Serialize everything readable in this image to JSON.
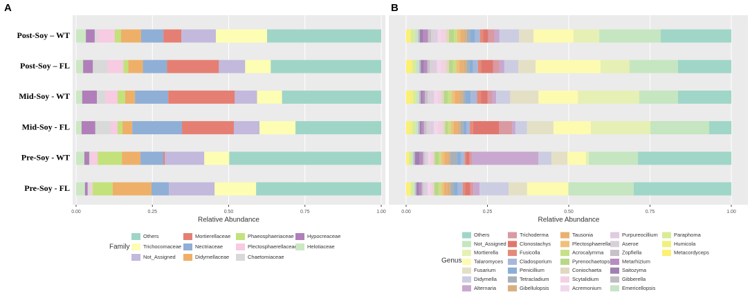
{
  "chart_data": [
    {
      "type": "bar",
      "orientation": "horizontal",
      "stacked": true,
      "grid": true,
      "panel_label": "A",
      "categories": [
        "Post-Soy – WT",
        "Post-Soy – FL",
        "Mid-Soy - WT",
        "Mid-Soy - FL",
        "Pre-Soy - WT",
        "Pre-Soy - FL"
      ],
      "xlabel": "Relative Abundance",
      "xlim": [
        0,
        1
      ],
      "xticks": [
        {
          "value": 0,
          "label": "0.00"
        },
        {
          "value": 0.25,
          "label": "0.25"
        },
        {
          "value": 0.5,
          "label": "0.50"
        },
        {
          "value": 0.75,
          "label": "0.75"
        },
        {
          "value": 1,
          "label": "1.00"
        }
      ],
      "legend_title": "Family",
      "series": [
        {
          "name": "Others",
          "color": "#9fd5c7",
          "values": [
            0.374,
            0.362,
            0.325,
            0.281,
            0.498,
            0.41
          ]
        },
        {
          "name": "Trichocomaceae",
          "color": "#fdfdb4",
          "values": [
            0.168,
            0.084,
            0.082,
            0.118,
            0.082,
            0.136
          ]
        },
        {
          "name": "Not_Assigned",
          "color": "#c2b9dc",
          "values": [
            0.113,
            0.086,
            0.073,
            0.084,
            0.129,
            0.15
          ]
        },
        {
          "name": "Mortierellaceae",
          "color": "#e57f73",
          "values": [
            0.059,
            0.17,
            0.218,
            0.17,
            0.005,
            0
          ]
        },
        {
          "name": "Nectriaceae",
          "color": "#8fafd6",
          "values": [
            0.073,
            0.079,
            0.109,
            0.163,
            0.075,
            0.057
          ]
        },
        {
          "name": "Didymellaceae",
          "color": "#eeb069",
          "values": [
            0.066,
            0.048,
            0.032,
            0.032,
            0.061,
            0.127
          ]
        },
        {
          "name": "Phaeosphaeriaceae",
          "color": "#c3e27b",
          "values": [
            0.02,
            0.016,
            0.025,
            0.016,
            0.079,
            0.066
          ]
        },
        {
          "name": "Plectosphaerellaceae",
          "color": "#f7cbe1",
          "values": [
            0.057,
            0.052,
            0.039,
            0.023,
            0.023,
            0.007
          ]
        },
        {
          "name": "Chaetomiaceae",
          "color": "#d9d9d9",
          "values": [
            0.009,
            0.048,
            0.029,
            0.05,
            0.005,
            0.009
          ]
        },
        {
          "name": "Hypocreaceae",
          "color": "#b07fb9",
          "values": [
            0.029,
            0.032,
            0.048,
            0.045,
            0.016,
            0.009
          ]
        },
        {
          "name": "Helotiaceae",
          "color": "#cbe8c3",
          "values": [
            0.032,
            0.023,
            0.02,
            0.018,
            0.027,
            0.029
          ]
        }
      ]
    },
    {
      "type": "bar",
      "orientation": "horizontal",
      "stacked": true,
      "grid": true,
      "panel_label": "B",
      "xlabel": "Relative Abundance",
      "xlim": [
        0,
        1
      ],
      "xticks": [
        {
          "value": 0,
          "label": "0.00"
        },
        {
          "value": 0.25,
          "label": "0.25"
        },
        {
          "value": 0.5,
          "label": "0.50"
        },
        {
          "value": 0.75,
          "label": "0.75"
        },
        {
          "value": 1,
          "label": "1.00"
        }
      ],
      "legend_title": "Genus",
      "series": [
        {
          "name": "Others",
          "color": "#9fd6c8",
          "values": [
            0.217,
            0.164,
            0.164,
            0.068,
            0.287,
            0.3
          ]
        },
        {
          "name": "Not_Assigned",
          "color": "#c5e6c0",
          "values": [
            0.189,
            0.149,
            0.119,
            0.181,
            0.151,
            0.2
          ]
        },
        {
          "name": "Mortierella",
          "color": "#e6f0b4",
          "values": [
            0.079,
            0.089,
            0.189,
            0.183,
            0.009,
            0.002
          ]
        },
        {
          "name": "Talaromyces",
          "color": "#fdfbb0",
          "values": [
            0.123,
            0.2,
            0.121,
            0.115,
            0.057,
            0.126
          ]
        },
        {
          "name": "Fusarium",
          "color": "#e4e0c6",
          "values": [
            0.045,
            0.053,
            0.087,
            0.081,
            0.049,
            0.057
          ]
        },
        {
          "name": "Didymella",
          "color": "#cccde2",
          "values": [
            0.06,
            0.043,
            0.043,
            0.036,
            0.04,
            0.089
          ]
        },
        {
          "name": "Alternaria",
          "color": "#c9a8cf",
          "values": [
            0.015,
            0.015,
            0.012,
            0.01,
            0.204,
            0.019
          ]
        },
        {
          "name": "Trichoderma",
          "color": "#d99aa2",
          "values": [
            0.02,
            0.02,
            0.015,
            0.04,
            0.008,
            0.01
          ]
        },
        {
          "name": "Clonostachys",
          "color": "#e0776e",
          "values": [
            0.015,
            0.036,
            0.02,
            0.08,
            0.01,
            0.015
          ]
        },
        {
          "name": "Fusicolla",
          "color": "#e48a7a",
          "values": [
            0.01,
            0.01,
            0.012,
            0.01,
            0.005,
            0.008
          ]
        },
        {
          "name": "Cladosporium",
          "color": "#a8b8d8",
          "values": [
            0.015,
            0.015,
            0.02,
            0.01,
            0.012,
            0.015
          ]
        },
        {
          "name": "Penicillium",
          "color": "#8aaed6",
          "values": [
            0.015,
            0.012,
            0.015,
            0.01,
            0.012,
            0.012
          ]
        },
        {
          "name": "Tetracladium",
          "color": "#a8b0b8",
          "values": [
            0.01,
            0.008,
            0.008,
            0.008,
            0.02,
            0.01
          ]
        },
        {
          "name": "Gibellulopsis",
          "color": "#d8b080",
          "values": [
            0.01,
            0.01,
            0.01,
            0.01,
            0.008,
            0.01
          ]
        },
        {
          "name": "Tausonia",
          "color": "#eab070",
          "values": [
            0.01,
            0.012,
            0.015,
            0.012,
            0.01,
            0.01
          ]
        },
        {
          "name": "Plectosphaerella",
          "color": "#f0c07a",
          "values": [
            0.01,
            0.01,
            0.01,
            0.008,
            0.01,
            0.008
          ]
        },
        {
          "name": "Acrocalymma",
          "color": "#c8e088",
          "values": [
            0.01,
            0.01,
            0.012,
            0.01,
            0.008,
            0.01
          ]
        },
        {
          "name": "Pyrenochaetopsis",
          "color": "#b8d888",
          "values": [
            0.015,
            0.012,
            0.012,
            0.008,
            0.012,
            0.012
          ]
        },
        {
          "name": "Coniochaeta",
          "color": "#e0d8c0",
          "values": [
            0.01,
            0.01,
            0.008,
            0.008,
            0.005,
            0.005
          ]
        },
        {
          "name": "Scytalidium",
          "color": "#f3d0e4",
          "values": [
            0.015,
            0.015,
            0.012,
            0.015,
            0.008,
            0.008
          ]
        },
        {
          "name": "Acremonium",
          "color": "#f0d8ea",
          "values": [
            0.01,
            0.012,
            0.01,
            0.012,
            0.008,
            0.008
          ]
        },
        {
          "name": "Purpureocillium",
          "color": "#e0cce0",
          "values": [
            0.01,
            0.01,
            0.01,
            0.012,
            0.005,
            0.005
          ]
        },
        {
          "name": "Aseroe",
          "color": "#d8d0d8",
          "values": [
            0.01,
            0.012,
            0.01,
            0.01,
            0.005,
            0.008
          ]
        },
        {
          "name": "Zopfiella",
          "color": "#c8c0c8",
          "values": [
            0.01,
            0.008,
            0.008,
            0.008,
            0.005,
            0.005
          ]
        },
        {
          "name": "Metarhizium",
          "color": "#b88cc0",
          "values": [
            0.015,
            0.01,
            0.008,
            0.008,
            0.01,
            0.008
          ]
        },
        {
          "name": "Saitozyma",
          "color": "#a080b0",
          "values": [
            0.01,
            0.01,
            0.005,
            0.005,
            0.015,
            0.008
          ]
        },
        {
          "name": "Gibberella",
          "color": "#c0bcc4",
          "values": [
            0.005,
            0.005,
            0.005,
            0.005,
            0.005,
            0.005
          ]
        },
        {
          "name": "Emericellopsis",
          "color": "#c8e4c8",
          "values": [
            0.01,
            0.01,
            0.008,
            0.008,
            0.005,
            0.005
          ]
        },
        {
          "name": "Paraphoma",
          "color": "#d8ec98",
          "values": [
            0.012,
            0.01,
            0.01,
            0.01,
            0.007,
            0.007
          ]
        },
        {
          "name": "Humicola",
          "color": "#f0f080",
          "values": [
            0.005,
            0.005,
            0.01,
            0.01,
            0.005,
            0.005
          ]
        },
        {
          "name": "Metacordyceps",
          "color": "#fef070",
          "values": [
            0.01,
            0.015,
            0.012,
            0.009,
            0.005,
            0.01
          ]
        }
      ]
    }
  ]
}
